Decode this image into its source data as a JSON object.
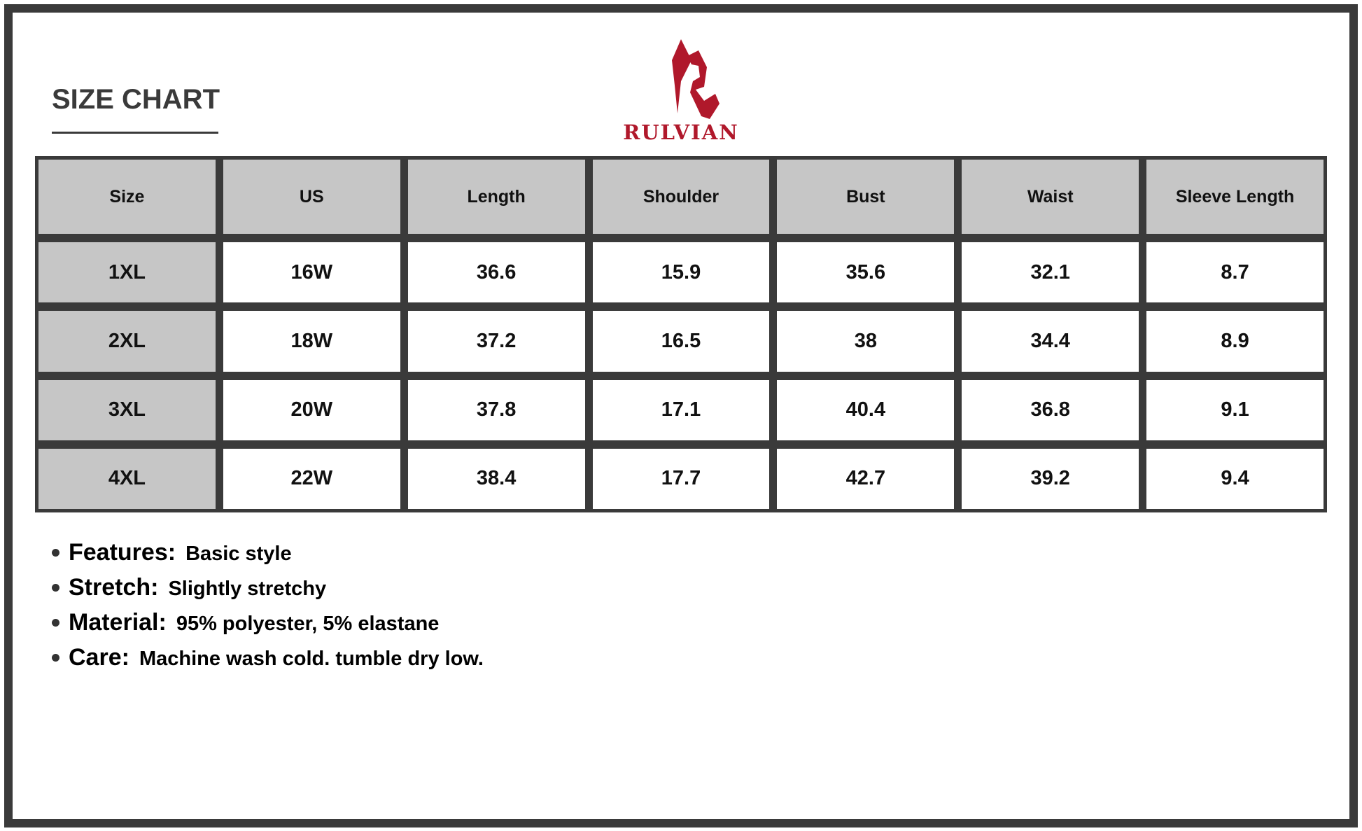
{
  "title": "SIZE CHART",
  "brand": {
    "name": "RULVIAN",
    "color": "#b0182b"
  },
  "table": {
    "headers": [
      "Size",
      "US",
      "Length",
      "Shoulder",
      "Bust",
      "Waist",
      "Sleeve Length"
    ],
    "rows": [
      [
        "1XL",
        "16W",
        "36.6",
        "15.9",
        "35.6",
        "32.1",
        "8.7"
      ],
      [
        "2XL",
        "18W",
        "37.2",
        "16.5",
        "38",
        "34.4",
        "8.9"
      ],
      [
        "3XL",
        "20W",
        "37.8",
        "17.1",
        "40.4",
        "36.8",
        "9.1"
      ],
      [
        "4XL",
        "22W",
        "38.4",
        "17.7",
        "42.7",
        "39.2",
        "9.4"
      ]
    ]
  },
  "notes": [
    {
      "label": "Features:",
      "value": "Basic style"
    },
    {
      "label": "Stretch:",
      "value": "Slightly stretchy"
    },
    {
      "label": "Material:",
      "value": "95% polyester, 5% elastane"
    },
    {
      "label": "Care:",
      "value": "Machine wash cold. tumble dry low."
    }
  ]
}
